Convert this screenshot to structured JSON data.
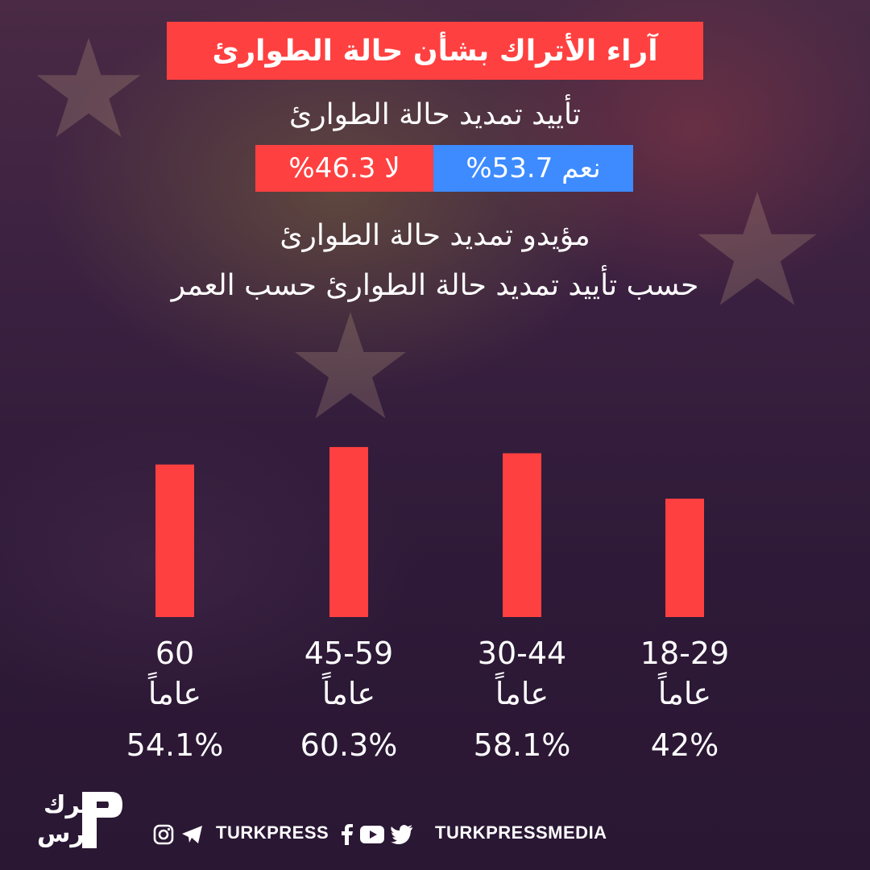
{
  "header": {
    "title": "آراء الأتراك بشأن حالة الطوارئ",
    "subtitle": "تأييد تمديد حالة الطوارئ",
    "yes_label": "نعم 53.7%",
    "no_label": "لا 46.3%",
    "section_line1": "مؤيدو تمديد حالة الطوارئ",
    "section_line2": "حسب تأييد تمديد حالة الطوارئ حسب العمر"
  },
  "colors": {
    "accent_red": "#ff4040",
    "accent_blue": "#3d8bff",
    "text": "#ffffff"
  },
  "chart_data": {
    "type": "bar",
    "categories": [
      "60",
      "45-59",
      "30-44",
      "18-29"
    ],
    "unit_label": "عاماً",
    "values": [
      54.1,
      60.3,
      58.1,
      42
    ],
    "value_labels": [
      "54.1%",
      "60.3%",
      "58.1%",
      "42%"
    ],
    "ylim": [
      0,
      65
    ],
    "grid": false
  },
  "footer": {
    "logo_text_top": "ترك",
    "logo_text_bottom": "برس",
    "handle_left": "TURKPRESS",
    "handle_right": "TURKPRESSMEDIA",
    "icons_left": [
      "instagram-icon",
      "telegram-icon"
    ],
    "icons_right": [
      "facebook-icon",
      "youtube-icon",
      "twitter-icon"
    ]
  }
}
